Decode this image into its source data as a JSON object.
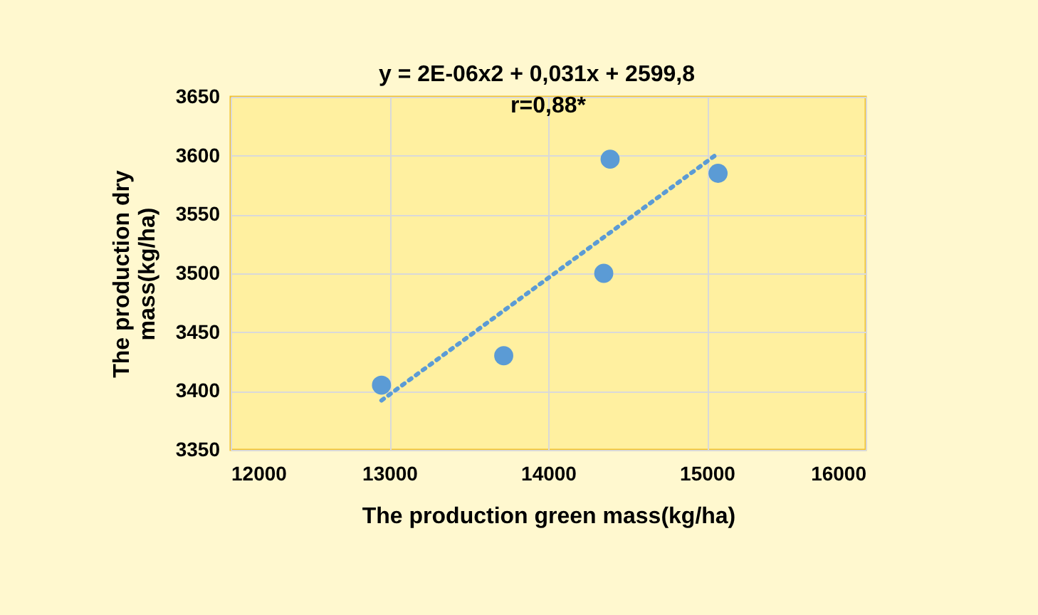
{
  "chart_data": {
    "type": "scatter",
    "xlabel": "The production green mass(kg/ha)",
    "ylabel": "The production dry\nmass(kg/ha)",
    "annotations": [
      "y = 2E-06x2 + 0,031x + 2599,8",
      "r=0,88*"
    ],
    "series": [
      {
        "color": "#5b9bd5",
        "marker": "circle",
        "x": [
          12950,
          13720,
          14350,
          14390,
          15070
        ],
        "values": [
          3405,
          3430,
          3500,
          3597,
          3585
        ]
      },
      {
        "type": "line",
        "color": "#5b9bd5",
        "line_style": "dotted",
        "x": [
          12950,
          15050
        ],
        "values": [
          3392,
          3600
        ]
      }
    ],
    "xlim": [
      12000,
      16000
    ],
    "xticks": [
      12000,
      13000,
      14000,
      15000,
      16000
    ],
    "ylim": [
      3350,
      3650
    ],
    "yticks": [
      3350,
      3400,
      3450,
      3500,
      3550,
      3600,
      3650
    ],
    "grid": true
  }
}
